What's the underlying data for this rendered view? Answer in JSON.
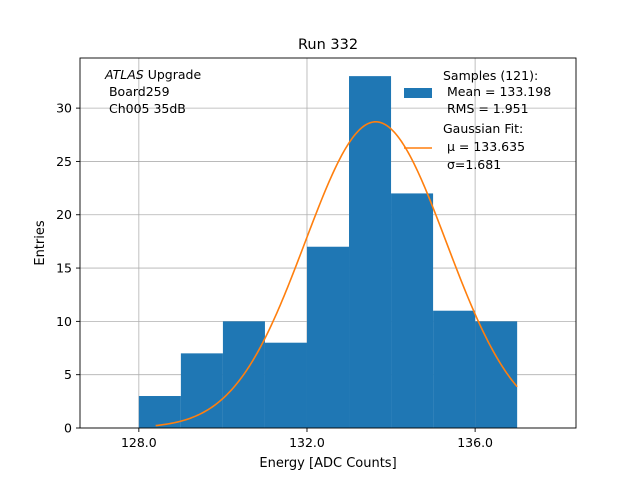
{
  "chart_data": {
    "type": "bar",
    "title": "Run 332",
    "xlabel": "Energy [ADC Counts]",
    "ylabel": "Entries",
    "xlim": [
      126.6,
      138.4
    ],
    "ylim": [
      0,
      34.7
    ],
    "grid": true,
    "xticks": [
      128.0,
      132.0,
      136.0
    ],
    "xtick_labels": [
      "128.0",
      "132.0",
      "136.0"
    ],
    "yticks": [
      0,
      5,
      10,
      15,
      20,
      25,
      30
    ],
    "ytick_labels": [
      "0",
      "5",
      "10",
      "15",
      "20",
      "25",
      "30"
    ],
    "bin_edges": [
      128,
      129,
      130,
      131,
      132,
      133,
      134,
      135,
      136,
      137
    ],
    "values": [
      3,
      7,
      10,
      8,
      17,
      33,
      22,
      11,
      10
    ],
    "gaussian_fit": {
      "mu": 133.635,
      "sigma": 1.681,
      "x_range": [
        128.4,
        137.0
      ]
    },
    "annotation": {
      "italic": "ATLAS",
      "line1_rest": " Upgrade",
      "line2": " Board259",
      "line3": " Ch005 35dB"
    },
    "legend": {
      "placement": "upper right",
      "samples": {
        "line1": "Samples (121):",
        "line2": " Mean = 133.198",
        "line3": " RMS = 1.951"
      },
      "fit": {
        "line1": "Gaussian Fit:",
        "line2": " μ = 133.635",
        "line3": " σ=1.681"
      }
    },
    "colors": {
      "bars": "#1f77b4",
      "fit": "#ff7f0e",
      "grid": "#b0b0b0"
    }
  }
}
